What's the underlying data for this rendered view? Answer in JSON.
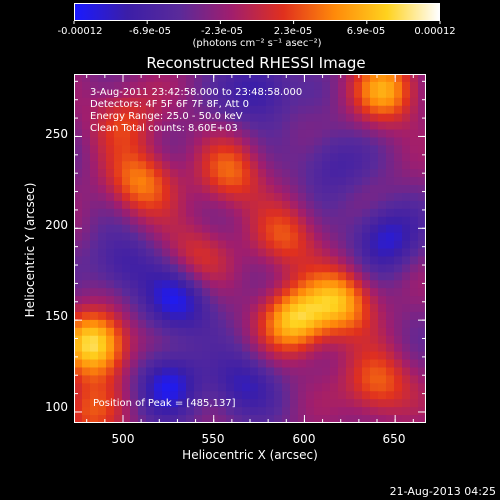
{
  "chart_data": {
    "type": "heatmap",
    "title": "Reconstructed RHESSI Image",
    "xlabel": "Heliocentric X (arcsec)",
    "ylabel": "Heliocentric Y (arcsec)",
    "xlim": [
      473,
      667
    ],
    "ylim": [
      94,
      284
    ],
    "xticks": [
      "500",
      "550",
      "600",
      "650"
    ],
    "xtick_values": [
      500,
      550,
      600,
      650
    ],
    "yticks": [
      "100",
      "150",
      "200",
      "250"
    ],
    "ytick_values": [
      100,
      150,
      200,
      250
    ],
    "colorbar": {
      "ticks": [
        "-0.00012",
        "-6.9e-05",
        "-2.3e-05",
        "2.3e-05",
        "6.9e-05",
        "0.00012"
      ],
      "units": "(photons cm⁻² s⁻¹ asec⁻²)",
      "range": [
        -0.00012,
        0.00012
      ],
      "colors": [
        "#1a1aff",
        "#3b1ea8",
        "#5a2a9a",
        "#a01e6e",
        "#e0301e",
        "#ff8a0a",
        "#ffd21e",
        "#ffffff"
      ]
    },
    "annotations": [
      "3-Aug-2011 23:42:58.000 to 23:48:58.000",
      "Detectors: 4F 5F 6F 7F 8F, Att 0",
      "Energy Range: 25.0 - 50.0 keV",
      "Clean     Total counts: 8.60E+03"
    ],
    "peak_text": "Position of Peak = [485,137]",
    "peak_position": [
      485,
      137
    ],
    "hotspots": [
      {
        "x": 485,
        "y": 137,
        "v": 1.0
      },
      {
        "x": 595,
        "y": 150,
        "v": 0.85
      },
      {
        "x": 620,
        "y": 160,
        "v": 0.75
      },
      {
        "x": 645,
        "y": 275,
        "v": 0.7
      },
      {
        "x": 510,
        "y": 225,
        "v": 0.6
      },
      {
        "x": 560,
        "y": 230,
        "v": 0.5
      },
      {
        "x": 640,
        "y": 115,
        "v": 0.55
      },
      {
        "x": 590,
        "y": 195,
        "v": 0.45
      },
      {
        "x": 500,
        "y": 260,
        "v": 0.4
      },
      {
        "x": 540,
        "y": 185,
        "v": 0.35
      },
      {
        "x": 480,
        "y": 100,
        "v": 0.45
      },
      {
        "x": 525,
        "y": 115,
        "v": -0.55
      },
      {
        "x": 530,
        "y": 160,
        "v": -0.6
      },
      {
        "x": 575,
        "y": 275,
        "v": -0.5
      },
      {
        "x": 645,
        "y": 195,
        "v": -0.55
      },
      {
        "x": 565,
        "y": 115,
        "v": -0.45
      },
      {
        "x": 500,
        "y": 180,
        "v": -0.4
      },
      {
        "x": 615,
        "y": 235,
        "v": -0.35
      }
    ]
  },
  "footer": "21-Aug-2013 04:25"
}
